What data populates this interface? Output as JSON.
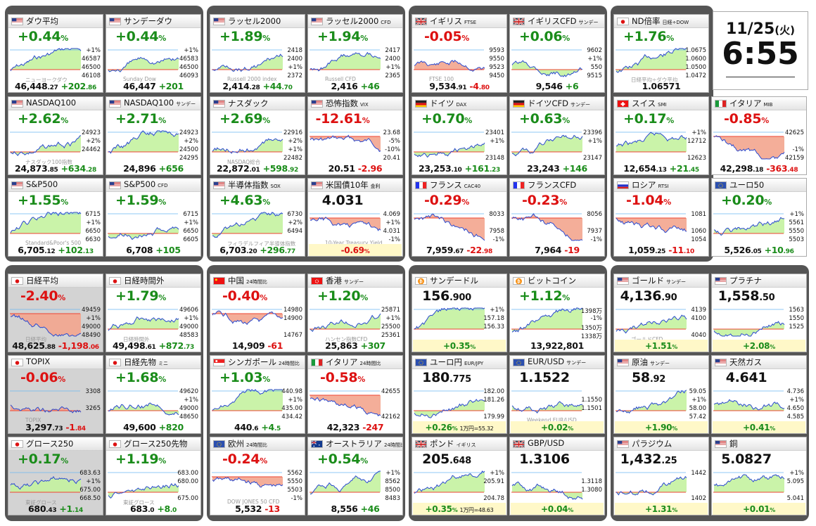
{
  "clock": {
    "date": "11/25",
    "dow": "(火)",
    "time": "6:55"
  },
  "colors": {
    "up": "#1a8c1a",
    "down": "#dd1111",
    "group_bg": "#555555"
  },
  "tiles": [
    {
      "name": "ダウ平均",
      "flag": "us",
      "change": "+0.44",
      "price_int": "46,448",
      "price_dec": ".27",
      "diff_int": "+202",
      "diff_dec": ".86",
      "labels": [
        "+1%",
        "46587",
        "46500",
        "46108"
      ],
      "watermark": "ニューヨークダウ",
      "trend": "up",
      "color": "up"
    },
    {
      "name": "サンデーダウ",
      "flag": "us",
      "change": "+0.44",
      "price_int": "46,447",
      "price_dec": "",
      "diff_int": "+201",
      "diff_dec": "",
      "labels": [
        "+1%",
        "46583",
        "46500",
        "46093"
      ],
      "watermark": "Sunday Dow",
      "trend": "up",
      "color": "up"
    },
    {
      "name": "ラッセル2000",
      "flag": "us",
      "change": "+1.89",
      "price_int": "2,414",
      "price_dec": ".28",
      "diff_int": "+44",
      "diff_dec": ".70",
      "labels": [
        "2418",
        "2400",
        "+1%",
        "2372"
      ],
      "watermark": "Russell 2000 index",
      "trend": "up",
      "color": "up"
    },
    {
      "name": "ラッセル2000",
      "tag": "CFD",
      "flag": "us",
      "change": "+1.94",
      "price_int": "2,416",
      "price_dec": "",
      "diff_int": "+46",
      "diff_dec": "",
      "labels": [
        "2417",
        "2400",
        "+1%",
        "2365"
      ],
      "watermark": "Russell CFD",
      "trend": "up",
      "color": "up"
    },
    {
      "name": "イギリス",
      "tag": "FTSE",
      "flag": "uk",
      "change": "-0.05",
      "price_int": "9,534",
      "price_dec": ".91",
      "diff_int": "-4",
      "diff_dec": ".80",
      "labels": [
        "9593",
        "9550",
        "9523",
        "9450"
      ],
      "watermark": "FTSE 100",
      "trend": "flat",
      "color": "dn"
    },
    {
      "name": "イギリスCFD",
      "tag": "サンデー",
      "flag": "uk",
      "change": "+0.06",
      "price_int": "9,546",
      "price_dec": "",
      "diff_int": "+6",
      "diff_dec": "",
      "labels": [
        "9602",
        "+1%",
        "550",
        "9515"
      ],
      "watermark": "",
      "trend": "flat",
      "color": "up"
    },
    {
      "name": "ND倍率",
      "tag": "日経÷DOW",
      "flag": "jp",
      "change": "+1.76",
      "price_int": "1.06571",
      "price_dec": "",
      "diff_int": "",
      "diff_dec": "",
      "labels": [
        "1.0675",
        "1.0600",
        "1.0500",
        "1.0472"
      ],
      "watermark": "日経平均÷ダウ平均",
      "trend": "up",
      "color": "up"
    },
    {
      "name": "NASDAQ100",
      "flag": "us",
      "change": "+2.62",
      "price_int": "24,873",
      "price_dec": ".85",
      "diff_int": "+634",
      "diff_dec": ".28",
      "labels": [
        "24923",
        "+2%",
        "24462",
        ""
      ],
      "watermark": "ナスダック100指数",
      "trend": "up",
      "color": "up"
    },
    {
      "name": "NASDAQ100",
      "tag": "サンデー",
      "flag": "us",
      "change": "+2.71",
      "price_int": "24,896",
      "price_dec": "",
      "diff_int": "+656",
      "diff_dec": "",
      "labels": [
        "24923",
        "+2%",
        "24500",
        "24295"
      ],
      "watermark": "",
      "trend": "up",
      "color": "up"
    },
    {
      "name": "ナスダック",
      "flag": "us",
      "change": "+2.69",
      "price_int": "22,872",
      "price_dec": ".01",
      "diff_int": "+598",
      "diff_dec": ".92",
      "labels": [
        "22916",
        "+2%",
        "+1%",
        "22482"
      ],
      "watermark": "NASDAQ総合",
      "trend": "up",
      "color": "up"
    },
    {
      "name": "恐怖指数",
      "tag": "VIX",
      "flag": "us",
      "change": "-12.61",
      "price_int": "20.51",
      "price_dec": "",
      "diff_int": "-2.96",
      "diff_dec": "",
      "labels": [
        "23.68",
        "-5%",
        "-10%",
        "20.41"
      ],
      "watermark": "",
      "trend": "down",
      "color": "dn"
    },
    {
      "name": "ドイツ",
      "tag": "DAX",
      "flag": "de",
      "change": "+0.70",
      "price_int": "23,253",
      "price_dec": ".10",
      "diff_int": "+161",
      "diff_dec": ".23",
      "labels": [
        "23401",
        "+1%",
        "",
        "23148"
      ],
      "watermark": "",
      "trend": "up",
      "color": "up"
    },
    {
      "name": "ドイツCFD",
      "tag": "サンデー",
      "flag": "de",
      "change": "+0.63",
      "price_int": "23,243",
      "price_dec": "",
      "diff_int": "+146",
      "diff_dec": "",
      "labels": [
        "23396",
        "+1%",
        "",
        "23147"
      ],
      "watermark": "",
      "trend": "up",
      "color": "up"
    },
    {
      "name": "スイス",
      "tag": "SMI",
      "flag": "ch",
      "change": "+0.17",
      "price_int": "12,654",
      "price_dec": ".13",
      "diff_int": "+21",
      "diff_dec": ".45",
      "labels": [
        "+1%",
        "12712",
        "",
        "12623"
      ],
      "watermark": "",
      "trend": "flat",
      "color": "up"
    },
    {
      "name": "イタリア",
      "tag": "MIB",
      "flag": "it",
      "change": "-0.85",
      "price_int": "42,298",
      "price_dec": ".18",
      "diff_int": "-363",
      "diff_dec": ".48",
      "labels": [
        "42625",
        "",
        "-1%",
        "42159"
      ],
      "watermark": "",
      "trend": "down",
      "color": "dn"
    },
    {
      "name": "S&P500",
      "flag": "us",
      "change": "+1.55",
      "price_int": "6,705",
      "price_dec": ".12",
      "diff_int": "+102",
      "diff_dec": ".13",
      "labels": [
        "6715",
        "+1%",
        "6650",
        "6630"
      ],
      "watermark": "Standard&Poor's 500",
      "trend": "up",
      "color": "up"
    },
    {
      "name": "S&P500",
      "tag": "CFD",
      "flag": "us",
      "change": "+1.59",
      "price_int": "6,708",
      "price_dec": "",
      "diff_int": "+105",
      "diff_dec": "",
      "labels": [
        "6715",
        "+1%",
        "6650",
        "6605"
      ],
      "watermark": "",
      "trend": "up",
      "color": "up"
    },
    {
      "name": "半導体指数",
      "tag": "SOX",
      "flag": "us",
      "change": "+4.63",
      "price_int": "6,703",
      "price_dec": ".20",
      "diff_int": "+296",
      "diff_dec": ".77",
      "labels": [
        "6730",
        "+2%",
        "6494",
        ""
      ],
      "watermark": "フィラデルフィア半導体指数",
      "trend": "up",
      "color": "up"
    },
    {
      "name": "米国債10年",
      "tag": "金利",
      "flag": "us",
      "big": "4.031",
      "pct": "-0.69",
      "labels": [
        "4.069",
        "+1%",
        "4.031",
        "-1%"
      ],
      "watermark": "10-Year Treasury Yield",
      "trend": "down",
      "color": "dn"
    },
    {
      "name": "フランス",
      "tag": "CAC40",
      "flag": "fr",
      "change": "-0.29",
      "price_int": "7,959",
      "price_dec": ".67",
      "diff_int": "-22",
      "diff_dec": ".98",
      "labels": [
        "8033",
        "",
        "7958",
        "-1%"
      ],
      "watermark": "",
      "trend": "down",
      "color": "dn"
    },
    {
      "name": "フランスCFD",
      "flag": "fr",
      "change": "-0.23",
      "price_int": "7,964",
      "price_dec": "",
      "diff_int": "-19",
      "diff_dec": "",
      "labels": [
        "8056",
        "",
        "7937",
        "-1%"
      ],
      "watermark": "",
      "trend": "down",
      "color": "dn"
    },
    {
      "name": "ロシア",
      "tag": "RTSI",
      "flag": "ru",
      "change": "-1.04",
      "price_int": "1,059",
      "price_dec": ".25",
      "diff_int": "-11",
      "diff_dec": ".10",
      "labels": [
        "1081",
        "",
        "1060",
        "1054"
      ],
      "watermark": "",
      "trend": "down",
      "color": "dn"
    },
    {
      "name": "ユーロ50",
      "flag": "eu",
      "change": "+0.20",
      "price_int": "5,526",
      "price_dec": ".05",
      "diff_int": "+10",
      "diff_dec": ".96",
      "labels": [
        "+1%",
        "5561",
        "5550",
        "5503"
      ],
      "watermark": "",
      "trend": "flat",
      "color": "up"
    },
    {
      "name": "日経平均",
      "flag": "jp",
      "change": "-2.40",
      "price_int": "48,625",
      "price_dec": ".88",
      "diff_int": "-1,198",
      "diff_dec": ".06",
      "labels": [
        "49459",
        "+1%",
        "49000",
        "48490"
      ],
      "watermark": "日経平均",
      "trend": "down",
      "color": "dn",
      "grey": true
    },
    {
      "name": "日経時間外",
      "flag": "jp",
      "change": "+1.79",
      "price_int": "49,498",
      "price_dec": ".61",
      "diff_int": "+872",
      "diff_dec": ".73",
      "labels": [
        "49606",
        "+1%",
        "49000",
        "48583"
      ],
      "watermark": "日経時間外",
      "trend": "up",
      "color": "up"
    },
    {
      "name": "中国",
      "tag": "24時間比",
      "flag": "cn",
      "change": "-0.40",
      "price_int": "14,909",
      "price_dec": "",
      "diff_int": "-61",
      "diff_dec": "",
      "labels": [
        "14980",
        "14900",
        "",
        "14767"
      ],
      "watermark": "",
      "trend": "down",
      "color": "dn"
    },
    {
      "name": "香港",
      "tag": "サンデー",
      "flag": "hk",
      "change": "+1.20",
      "price_int": "25,863",
      "price_dec": "",
      "diff_int": "+307",
      "diff_dec": "",
      "labels": [
        "25871",
        "+1%",
        "25500",
        "25361"
      ],
      "watermark": "ハンセン指数CFD",
      "trend": "up",
      "color": "up"
    },
    {
      "name": "サンデードル",
      "flag": "btc",
      "big": "156",
      "bigdec": ".900",
      "pct": "+0.35",
      "labels": [
        "+1%",
        "157.18",
        "156.33",
        ""
      ],
      "watermark": "",
      "trend": "up",
      "color": "up"
    },
    {
      "name": "ビットコイン",
      "flag": "btc",
      "change": "+1.12",
      "price_int": "13,922,801",
      "price_dec": "",
      "diff_int": "",
      "diff_dec": "",
      "labels": [
        "1398万",
        "-1%",
        "1350万",
        "1338万"
      ],
      "watermark": "",
      "trend": "up",
      "color": "up"
    },
    {
      "name": "ゴールド",
      "tag": "サンデー",
      "flag": "us",
      "big": "4,136",
      "bigdec": ".90",
      "pct": "+1.51",
      "labels": [
        "4139",
        "4100",
        "",
        "4040"
      ],
      "watermark": "ゴールドCFD",
      "trend": "up",
      "color": "up"
    },
    {
      "name": "プラチナ",
      "flag": "us",
      "big": "1,558",
      "bigdec": ".50",
      "pct": "+2.08",
      "labels": [
        "1563",
        "1550",
        "1525",
        ""
      ],
      "watermark": "",
      "trend": "up",
      "color": "up"
    },
    {
      "name": "TOPIX",
      "flag": "jp",
      "change": "-0.06",
      "price_int": "3,297",
      "price_dec": ".73",
      "diff_int": "-1",
      "diff_dec": ".84",
      "labels": [
        "3308",
        "",
        "3265",
        ""
      ],
      "watermark": "TOPIX",
      "trend": "flat",
      "color": "dn",
      "grey": true
    },
    {
      "name": "日経先物",
      "tag": "ミニ",
      "flag": "jp",
      "change": "+1.68",
      "price_int": "49,600",
      "price_dec": "",
      "diff_int": "+820",
      "diff_dec": "",
      "labels": [
        "49620",
        "+1%",
        "49000",
        "48650"
      ],
      "watermark": "",
      "trend": "up",
      "color": "up"
    },
    {
      "name": "シンガポール",
      "tag": "24時間比",
      "flag": "sg",
      "change": "+1.03",
      "price_int": "440",
      "price_dec": ".6",
      "diff_int": "+4",
      "diff_dec": ".5",
      "labels": [
        "440.98",
        "+1%",
        "435.00",
        "434.42"
      ],
      "watermark": "",
      "trend": "up",
      "color": "up"
    },
    {
      "name": "イタリア",
      "tag": "24時間比",
      "flag": "it",
      "change": "-0.58",
      "price_int": "42,323",
      "price_dec": "",
      "diff_int": "-247",
      "diff_dec": "",
      "labels": [
        "42655",
        "",
        "",
        "42162"
      ],
      "watermark": "",
      "trend": "down",
      "color": "dn"
    },
    {
      "name": "ユーロ円",
      "tag": "EUR/JPY",
      "flag": "eu",
      "big": "180",
      "bigdec": ".775",
      "pct": "+0.26",
      "extra": "1万円=55.32",
      "labels": [
        "182.00",
        "181.26",
        "",
        "179.99"
      ],
      "watermark": "",
      "trend": "up",
      "color": "up"
    },
    {
      "name": "EUR/USD",
      "tag": "サンデー",
      "flag": "eu",
      "big": "1.1522",
      "bigdec": "",
      "pct": "+0.02",
      "labels": [
        "",
        "1.1550",
        "1.1501",
        ""
      ],
      "watermark": "Weekend EUR/USD",
      "trend": "flat",
      "color": "up"
    },
    {
      "name": "原油",
      "tag": "サンデー",
      "flag": "us",
      "big": "58",
      "bigdec": ".92",
      "pct": "+1.90",
      "labels": [
        "59.05",
        "+1%",
        "58.00",
        "57.42"
      ],
      "watermark": "",
      "trend": "up",
      "color": "up"
    },
    {
      "name": "天然ガス",
      "flag": "us",
      "big": "4.641",
      "bigdec": "",
      "pct": "+0.41",
      "labels": [
        "4.736",
        "+1%",
        "4.650",
        "4.585"
      ],
      "watermark": "",
      "trend": "flat",
      "color": "up"
    },
    {
      "name": "グロース250",
      "flag": "jp",
      "change": "+0.17",
      "price_int": "680",
      "price_dec": ".43",
      "diff_int": "+1",
      "diff_dec": ".14",
      "labels": [
        "683.63",
        "+1%",
        "675.00",
        "668.50"
      ],
      "watermark": "東証グロース",
      "trend": "flat",
      "color": "up",
      "grey": true
    },
    {
      "name": "グロース250先物",
      "flag": "jp",
      "change": "+1.19",
      "price_int": "683",
      "price_dec": ".0",
      "diff_int": "+8",
      "diff_dec": ".0",
      "labels": [
        "683.00",
        "680.00",
        "",
        "675.00"
      ],
      "watermark": "東証グロース",
      "trend": "up",
      "color": "up"
    },
    {
      "name": "欧州",
      "tag": "24時間比",
      "flag": "eu",
      "change": "-0.24",
      "price_int": "5,532",
      "price_dec": "",
      "diff_int": "-13",
      "diff_dec": "",
      "labels": [
        "5562",
        "5550",
        "5503",
        "-1%"
      ],
      "watermark": "DOW JONES 50 CFD",
      "trend": "down",
      "color": "dn"
    },
    {
      "name": "オーストラリア",
      "tag": "24時間比",
      "flag": "au",
      "change": "+0.54",
      "price_int": "8,556",
      "price_dec": "",
      "diff_int": "+46",
      "diff_dec": "",
      "labels": [
        "+1%",
        "8562",
        "8500",
        "8483"
      ],
      "watermark": "",
      "trend": "up",
      "color": "up"
    },
    {
      "name": "ポンド",
      "tag": "イギリス",
      "flag": "uk",
      "big": "205",
      "bigdec": ".648",
      "pct": "+0.35",
      "extra": "1万円=48.63",
      "labels": [
        "+1%",
        "205.91",
        "",
        "204.78"
      ],
      "watermark": "",
      "trend": "up",
      "color": "up"
    },
    {
      "name": "GBP/USD",
      "flag": "uk",
      "big": "1.3106",
      "bigdec": "",
      "pct": "+0.04",
      "labels": [
        "",
        "1.3118",
        "1.3080",
        ""
      ],
      "watermark": "",
      "trend": "flat",
      "color": "up"
    },
    {
      "name": "パラジウム",
      "flag": "us",
      "big": "1,432",
      "bigdec": ".25",
      "pct": "+1.31",
      "labels": [
        "1442",
        "",
        "",
        "1402"
      ],
      "watermark": "",
      "trend": "up",
      "color": "up"
    },
    {
      "name": "銅",
      "flag": "us",
      "big": "5.0827",
      "bigdec": "",
      "pct": "+0.01",
      "labels": [
        "+1%",
        "5.095",
        "",
        "5.041"
      ],
      "watermark": "",
      "trend": "flat",
      "color": "up"
    }
  ]
}
